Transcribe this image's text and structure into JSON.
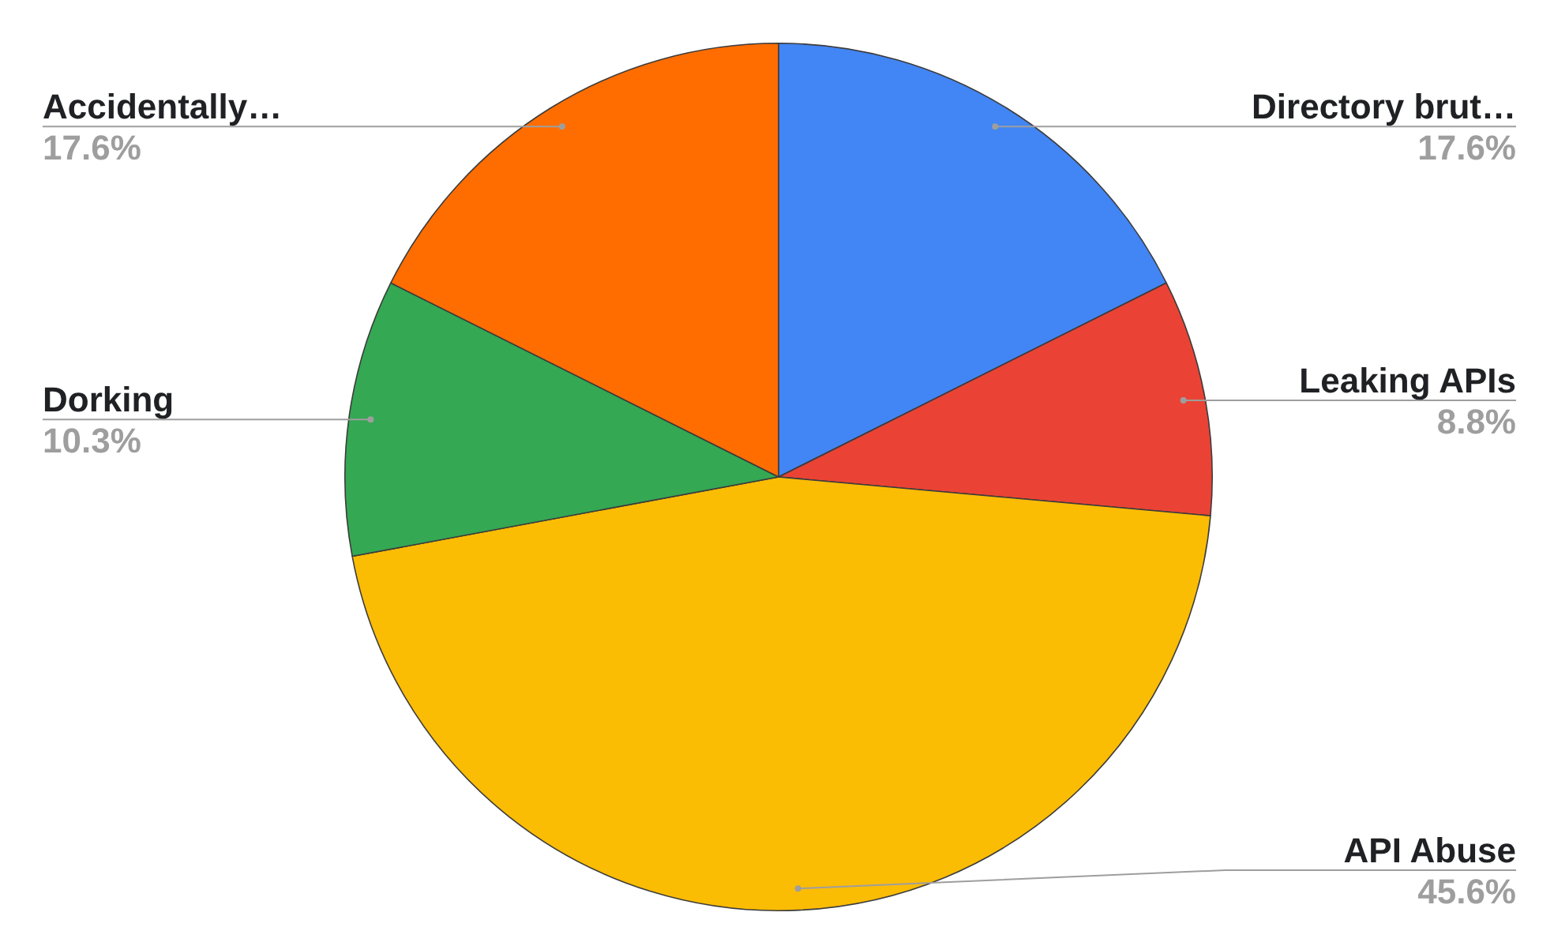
{
  "chart_data": {
    "type": "pie",
    "categories": [
      "Directory brut…",
      "Leaking APIs",
      "API Abuse",
      "Dorking",
      "Accidentally…"
    ],
    "values": [
      17.6,
      8.8,
      45.6,
      10.3,
      17.6
    ],
    "colors": [
      "#4285f4",
      "#ea4335",
      "#fbbc04",
      "#34a853",
      "#ff6d01"
    ],
    "value_labels": [
      "17.6%",
      "8.8%",
      "45.6%",
      "10.3%",
      "17.6%"
    ]
  }
}
